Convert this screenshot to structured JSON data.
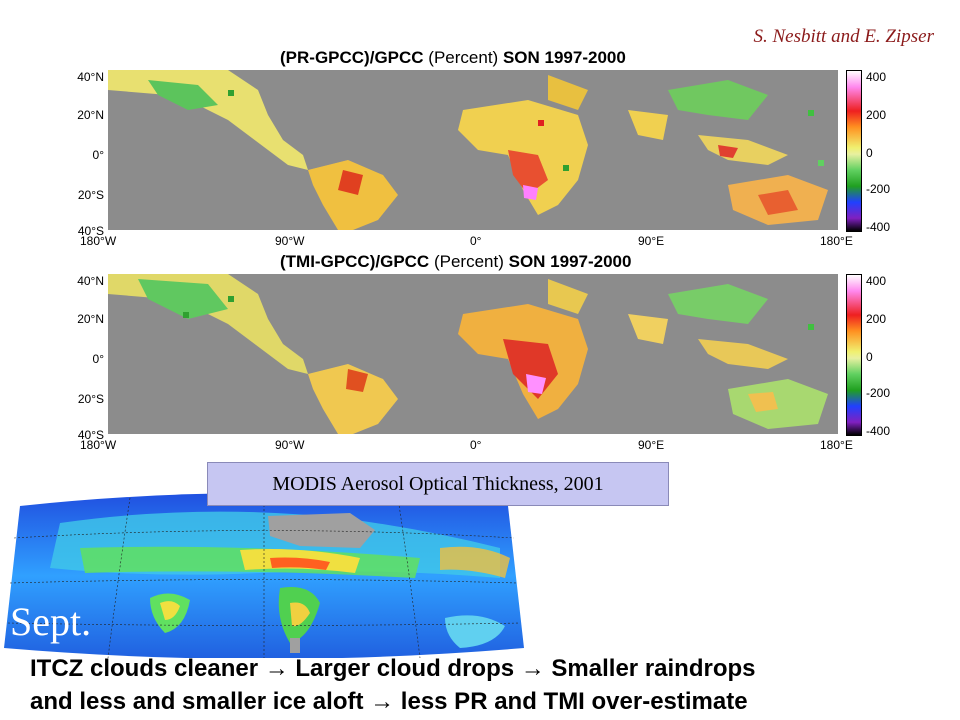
{
  "credit": "S. Nesbitt and E. Zipser",
  "panels": [
    {
      "title_main": "(PR-GPCC)/GPCC",
      "title_unit": "(Percent)",
      "title_period": "SON 1997-2000"
    },
    {
      "title_main": "(TMI-GPCC)/GPCC",
      "title_unit": "(Percent)",
      "title_period": "SON 1997-2000"
    }
  ],
  "lat_labels": [
    "40°N",
    "20°N",
    "0°",
    "20°S",
    "40°S"
  ],
  "lon_labels": [
    "180°W",
    "90°W",
    "0°",
    "90°E",
    "180°E"
  ],
  "colorbar_labels": [
    "400",
    "200",
    "0",
    "-200",
    "-400"
  ],
  "modis_label": "MODIS Aerosol Optical Thickness, 2001",
  "modis_month": "Sept.",
  "conclusion": {
    "line1": "ITCZ clouds cleaner → Larger cloud drops → Smaller raindrops",
    "line2": "and less and smaller ice aloft → less PR and TMI over-estimate"
  },
  "colors": {
    "ocean": "#8c8c8c",
    "credit": "#8b1a1a",
    "label_box": "#c6c6f2"
  }
}
